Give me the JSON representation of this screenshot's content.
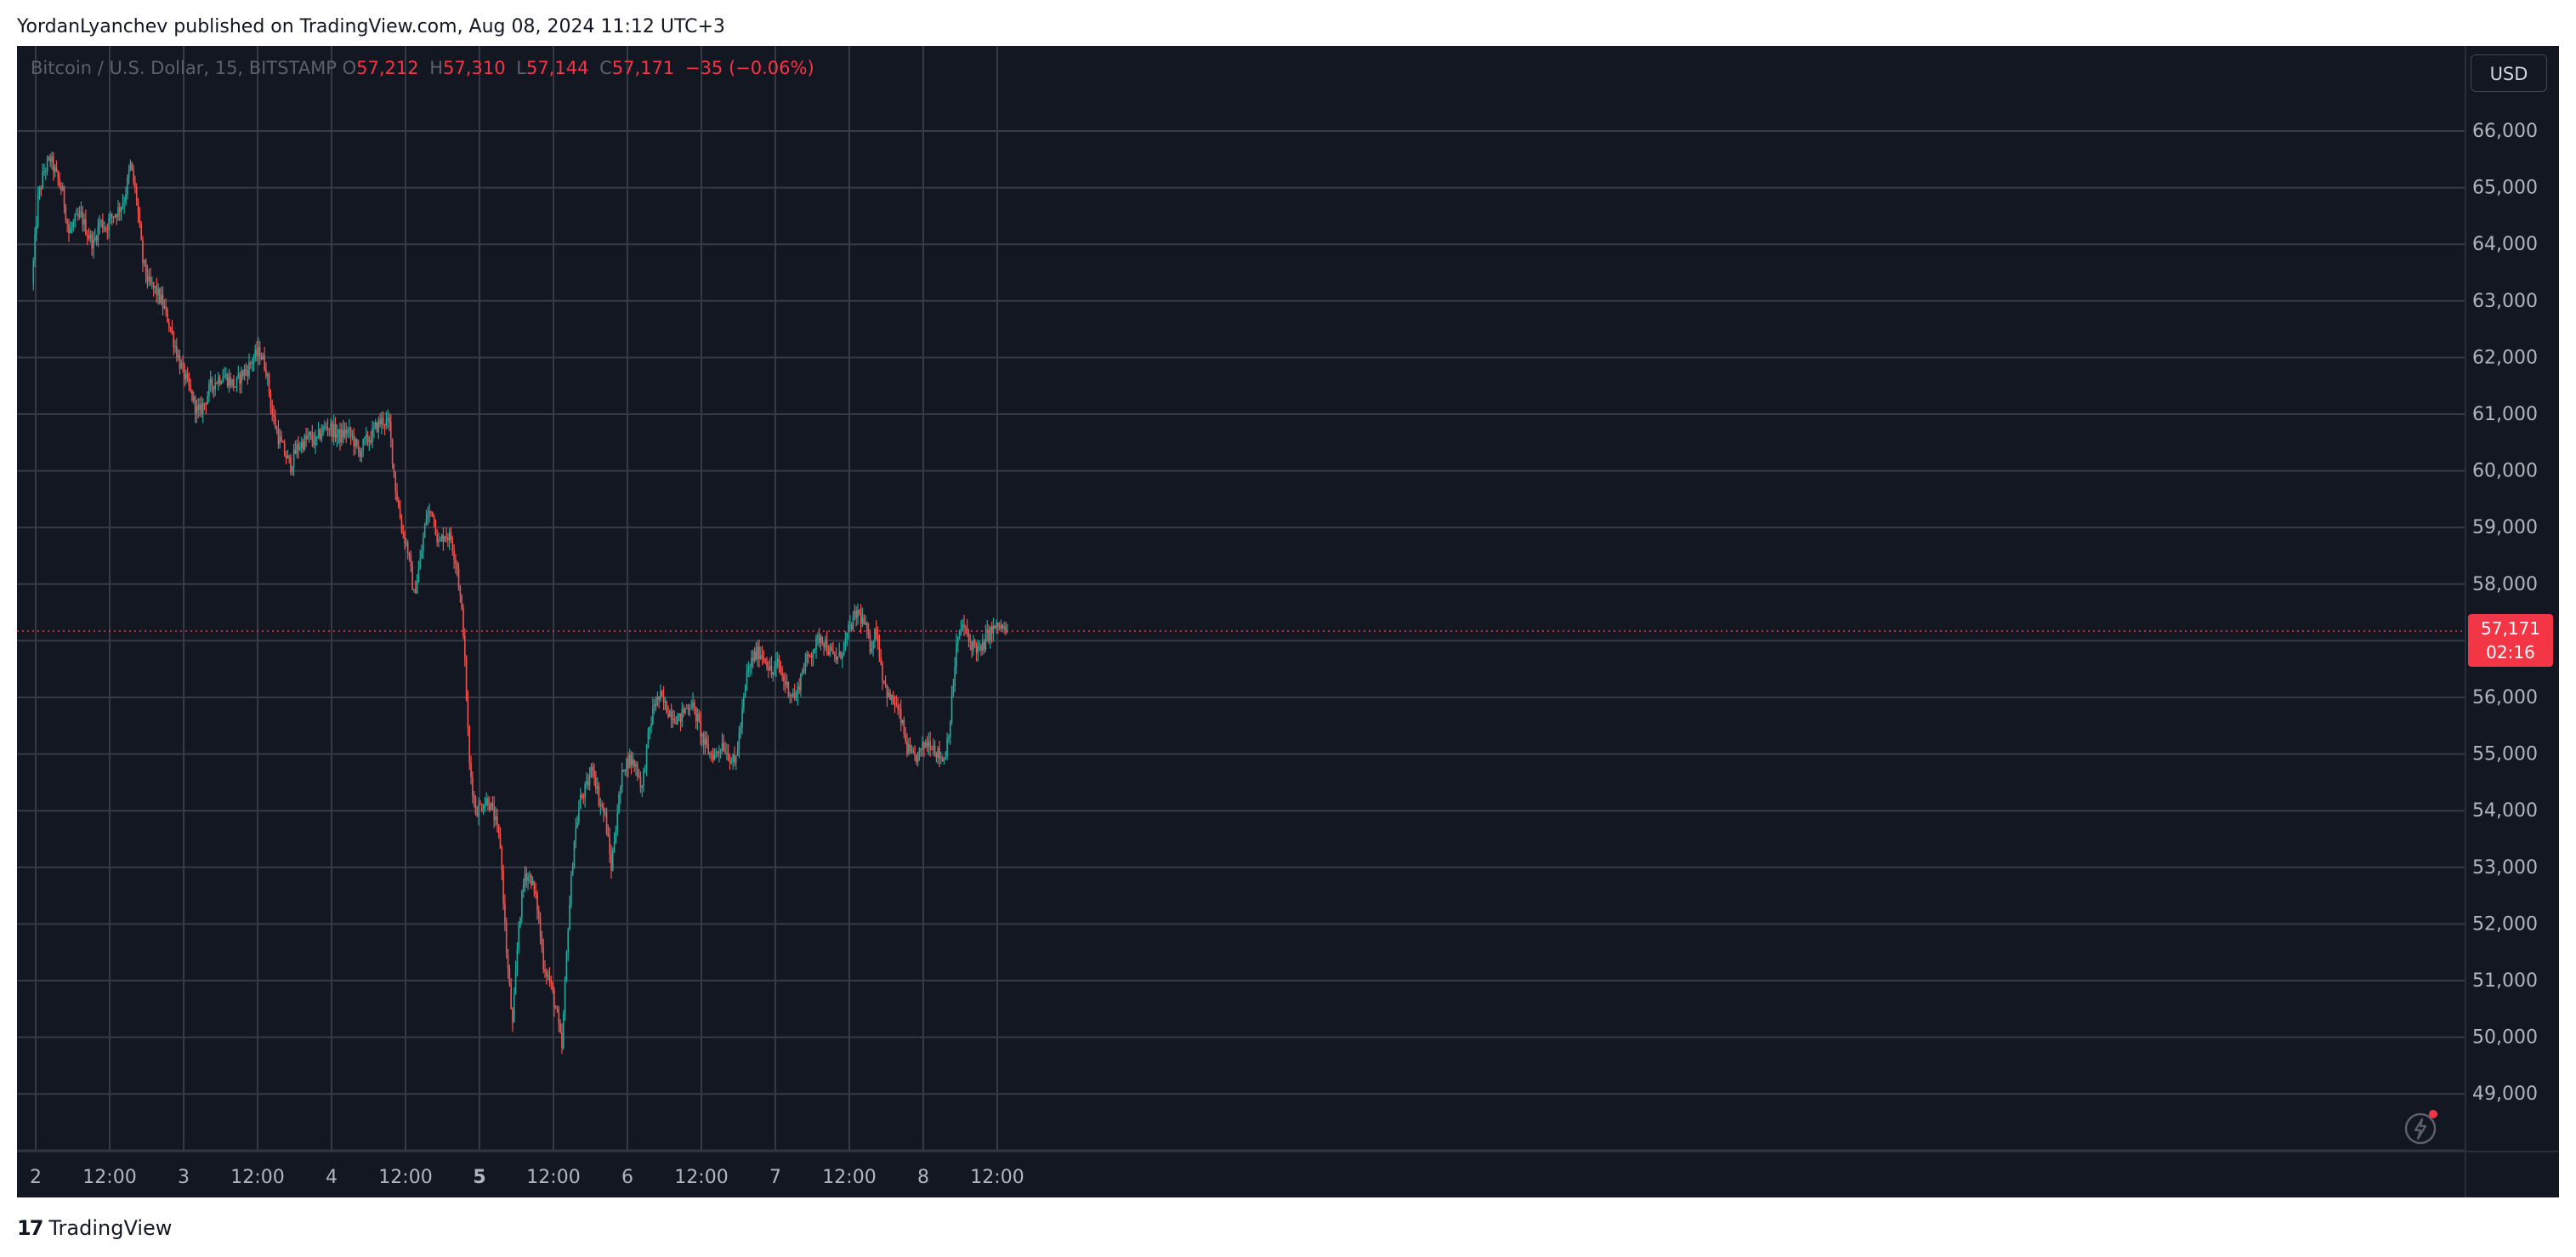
{
  "header": {
    "publisher_line": "YordanLyanchev published on TradingView.com, Aug 08, 2024 11:12 UTC+3"
  },
  "footer": {
    "logo_text": "TradingView",
    "logo_icon": "tradingview-logo-icon"
  },
  "legend": {
    "symbol": "Bitcoin / U.S. Dollar, 15, BITSTAMP",
    "open_label": "O",
    "open": "57,212",
    "high_label": "H",
    "high": "57,310",
    "low_label": "L",
    "low": "57,144",
    "close_label": "C",
    "close": "57,171",
    "change": "−35 (−0.06%)"
  },
  "price_scale": {
    "currency_button": "USD",
    "last_price": "57,171",
    "countdown": "02:16"
  },
  "toolbar": {
    "lightning_icon": "lightning-alert-icon"
  },
  "colors": {
    "background": "#131722",
    "grid": "#363a45",
    "up": "#26a69a",
    "down": "#ef5350",
    "text": "#b2b5be",
    "last_price": "#f23645"
  },
  "chart_data": {
    "type": "candlestick",
    "title": "Bitcoin / U.S. Dollar, 15, BITSTAMP",
    "interval": "15",
    "x_tick_labels": [
      "2",
      "12:00",
      "3",
      "12:00",
      "4",
      "12:00",
      "5",
      "12:00",
      "6",
      "12:00",
      "7",
      "12:00",
      "8",
      "12:00"
    ],
    "y_tick_labels": [
      "66,000",
      "65,000",
      "64,000",
      "63,000",
      "62,000",
      "61,000",
      "60,000",
      "59,000",
      "58,000",
      "56,000",
      "55,000",
      "54,000",
      "53,000",
      "52,000",
      "51,000",
      "50,000",
      "49,000"
    ],
    "ylim": [
      48000,
      67000
    ],
    "grid": true,
    "last_price": 57171,
    "x_unit": "hours since Aug 2 00:00",
    "price_path": [
      [
        -0.5,
        63300
      ],
      [
        0.5,
        64800
      ],
      [
        1.5,
        65300
      ],
      [
        2.5,
        65500
      ],
      [
        3.5,
        65200
      ],
      [
        4.5,
        64900
      ],
      [
        5.5,
        64200
      ],
      [
        6.5,
        64400
      ],
      [
        7.5,
        64500
      ],
      [
        8.5,
        64200
      ],
      [
        9.5,
        64000
      ],
      [
        10.5,
        64400
      ],
      [
        11.5,
        64300
      ],
      [
        12.5,
        64500
      ],
      [
        13.5,
        64600
      ],
      [
        14.5,
        64800
      ],
      [
        15.5,
        65400
      ],
      [
        16.5,
        64800
      ],
      [
        17.5,
        63700
      ],
      [
        18.5,
        63300
      ],
      [
        19.5,
        63200
      ],
      [
        20.5,
        63000
      ],
      [
        21.5,
        62700
      ],
      [
        22.5,
        62300
      ],
      [
        23.5,
        61900
      ],
      [
        24.5,
        61600
      ],
      [
        25.5,
        61300
      ],
      [
        26.5,
        61000
      ],
      [
        27.5,
        61200
      ],
      [
        28.5,
        61500
      ],
      [
        29.5,
        61600
      ],
      [
        30.5,
        61700
      ],
      [
        31.5,
        61600
      ],
      [
        32.5,
        61500
      ],
      [
        33.5,
        61700
      ],
      [
        34.5,
        61800
      ],
      [
        35.5,
        62000
      ],
      [
        36.5,
        62100
      ],
      [
        37.5,
        61800
      ],
      [
        38.5,
        61000
      ],
      [
        39.5,
        60600
      ],
      [
        40.5,
        60300
      ],
      [
        41.5,
        60100
      ],
      [
        42.5,
        60400
      ],
      [
        43.5,
        60500
      ],
      [
        44.5,
        60600
      ],
      [
        45.5,
        60500
      ],
      [
        46.5,
        60700
      ],
      [
        47.5,
        60800
      ],
      [
        48.5,
        60700
      ],
      [
        49.5,
        60600
      ],
      [
        50.5,
        60700
      ],
      [
        51.5,
        60600
      ],
      [
        52.5,
        60300
      ],
      [
        53.5,
        60500
      ],
      [
        54.5,
        60600
      ],
      [
        55.5,
        60800
      ],
      [
        56.5,
        60900
      ],
      [
        57.5,
        60800
      ],
      [
        58.5,
        59700
      ],
      [
        59.5,
        59000
      ],
      [
        60.5,
        58600
      ],
      [
        61.5,
        57800
      ],
      [
        62.5,
        58400
      ],
      [
        63.5,
        59200
      ],
      [
        64.5,
        59300
      ],
      [
        65.5,
        58700
      ],
      [
        66.5,
        58900
      ],
      [
        67.5,
        58800
      ],
      [
        68.5,
        58300
      ],
      [
        69.5,
        57200
      ],
      [
        70.5,
        54800
      ],
      [
        71.5,
        54000
      ],
      [
        72.5,
        54100
      ],
      [
        73.5,
        54200
      ],
      [
        74.5,
        53900
      ],
      [
        75.5,
        53400
      ],
      [
        76.5,
        51500
      ],
      [
        77.5,
        50200
      ],
      [
        78.5,
        52000
      ],
      [
        79.5,
        52900
      ],
      [
        80.5,
        52800
      ],
      [
        81.5,
        52300
      ],
      [
        82.5,
        51300
      ],
      [
        83.5,
        51000
      ],
      [
        84.5,
        50500
      ],
      [
        85.5,
        49800
      ],
      [
        86.5,
        52000
      ],
      [
        87.5,
        53500
      ],
      [
        88.5,
        54200
      ],
      [
        89.5,
        54400
      ],
      [
        90.5,
        54800
      ],
      [
        91.5,
        54200
      ],
      [
        92.5,
        53900
      ],
      [
        93.5,
        53000
      ],
      [
        94.5,
        54000
      ],
      [
        95.5,
        54800
      ],
      [
        96.5,
        54900
      ],
      [
        97.5,
        54800
      ],
      [
        98.5,
        54400
      ],
      [
        99.5,
        55300
      ],
      [
        100.5,
        55900
      ],
      [
        101.5,
        56000
      ],
      [
        102.5,
        55800
      ],
      [
        103.5,
        55700
      ],
      [
        104.5,
        55600
      ],
      [
        105.5,
        55800
      ],
      [
        106.5,
        55900
      ],
      [
        107.5,
        55600
      ],
      [
        108.5,
        55200
      ],
      [
        109.5,
        55000
      ],
      [
        110.5,
        55000
      ],
      [
        111.5,
        55200
      ],
      [
        112.5,
        55000
      ],
      [
        113.5,
        54800
      ],
      [
        114.5,
        55500
      ],
      [
        115.5,
        56400
      ],
      [
        116.5,
        56700
      ],
      [
        117.5,
        56800
      ],
      [
        118.5,
        56700
      ],
      [
        119.5,
        56400
      ],
      [
        120.5,
        56600
      ],
      [
        121.5,
        56300
      ],
      [
        122.5,
        56100
      ],
      [
        123.5,
        56000
      ],
      [
        124.5,
        56500
      ],
      [
        125.5,
        56700
      ],
      [
        126.5,
        56900
      ],
      [
        127.5,
        57100
      ],
      [
        128.5,
        56900
      ],
      [
        129.5,
        56700
      ],
      [
        130.5,
        56700
      ],
      [
        131.5,
        57000
      ],
      [
        132.5,
        57300
      ],
      [
        133.5,
        57500
      ],
      [
        134.5,
        57300
      ],
      [
        135.5,
        56900
      ],
      [
        136.5,
        57200
      ],
      [
        137.5,
        56400
      ],
      [
        138.5,
        56000
      ],
      [
        139.5,
        55900
      ],
      [
        140.5,
        55600
      ],
      [
        141.5,
        55100
      ],
      [
        142.5,
        54900
      ],
      [
        143.5,
        55000
      ],
      [
        144.5,
        55200
      ],
      [
        145.5,
        55200
      ],
      [
        146.5,
        55000
      ],
      [
        147.5,
        54900
      ],
      [
        148.5,
        55600
      ],
      [
        149.5,
        56900
      ],
      [
        150.5,
        57300
      ],
      [
        151.5,
        57000
      ],
      [
        152.5,
        56900
      ],
      [
        153.5,
        56800
      ],
      [
        154.5,
        57100
      ],
      [
        155.5,
        57200
      ],
      [
        156.5,
        57250
      ],
      [
        157.5,
        57171
      ]
    ]
  }
}
